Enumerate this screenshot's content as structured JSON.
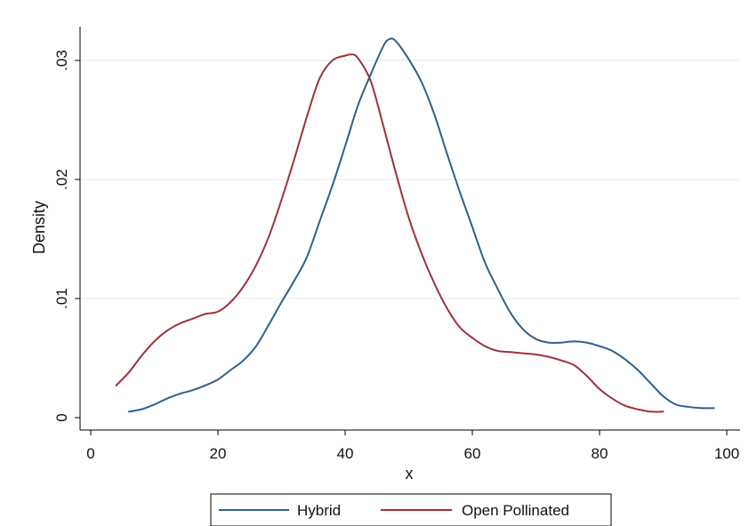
{
  "chart_data": {
    "type": "line",
    "title": "",
    "xlabel": "x",
    "ylabel": "Density",
    "xlim": [
      0,
      100
    ],
    "ylim": [
      0,
      0.03
    ],
    "x_ticks": [
      0,
      20,
      40,
      60,
      80,
      100
    ],
    "x_tick_labels": [
      "0",
      "20",
      "40",
      "60",
      "80",
      "100"
    ],
    "y_ticks": [
      0,
      0.01,
      0.02,
      0.03
    ],
    "y_tick_labels": [
      "0",
      ".01",
      ".02",
      ".03"
    ],
    "grid": "horizontal",
    "legend_position": "bottom",
    "series": [
      {
        "name": "Hybrid",
        "color": "#2f5f8a",
        "x": [
          6,
          8,
          10,
          12,
          14,
          16,
          18,
          20,
          22,
          24,
          26,
          28,
          30,
          32,
          34,
          36,
          38,
          40,
          42,
          44,
          46,
          47,
          48,
          50,
          52,
          54,
          56,
          58,
          60,
          62,
          64,
          66,
          68,
          70,
          72,
          74,
          76,
          78,
          80,
          82,
          84,
          86,
          88,
          90,
          92,
          94,
          96,
          98
        ],
        "y": [
          0.0005,
          0.0007,
          0.0011,
          0.0016,
          0.002,
          0.0023,
          0.0027,
          0.0032,
          0.004,
          0.0048,
          0.006,
          0.0078,
          0.0097,
          0.0115,
          0.0135,
          0.0165,
          0.0195,
          0.0228,
          0.0262,
          0.0288,
          0.0312,
          0.0318,
          0.0316,
          0.0301,
          0.0282,
          0.0255,
          0.0222,
          0.019,
          0.016,
          0.013,
          0.0108,
          0.0088,
          0.0074,
          0.0066,
          0.0063,
          0.0063,
          0.0064,
          0.0063,
          0.006,
          0.0056,
          0.0049,
          0.004,
          0.0029,
          0.0018,
          0.0011,
          0.0009,
          0.0008,
          0.0008
        ]
      },
      {
        "name": "Open Pollinated",
        "color": "#a0303d",
        "x": [
          4,
          6,
          8,
          10,
          12,
          14,
          16,
          18,
          20,
          22,
          24,
          26,
          28,
          30,
          32,
          34,
          36,
          38,
          40,
          41,
          42,
          44,
          46,
          48,
          50,
          52,
          54,
          56,
          58,
          60,
          62,
          64,
          66,
          68,
          70,
          72,
          74,
          76,
          78,
          80,
          82,
          84,
          86,
          88,
          90
        ],
        "y": [
          0.0027,
          0.0038,
          0.0052,
          0.0064,
          0.0073,
          0.0079,
          0.0083,
          0.0087,
          0.0089,
          0.0097,
          0.011,
          0.0128,
          0.0152,
          0.0183,
          0.0217,
          0.0253,
          0.0285,
          0.03,
          0.0304,
          0.0305,
          0.0302,
          0.0283,
          0.0245,
          0.0205,
          0.0168,
          0.0138,
          0.0113,
          0.0092,
          0.0076,
          0.0067,
          0.006,
          0.0056,
          0.0055,
          0.0054,
          0.0053,
          0.0051,
          0.0048,
          0.0044,
          0.0035,
          0.0024,
          0.0016,
          0.001,
          0.0007,
          0.0005,
          0.0005
        ]
      }
    ]
  }
}
